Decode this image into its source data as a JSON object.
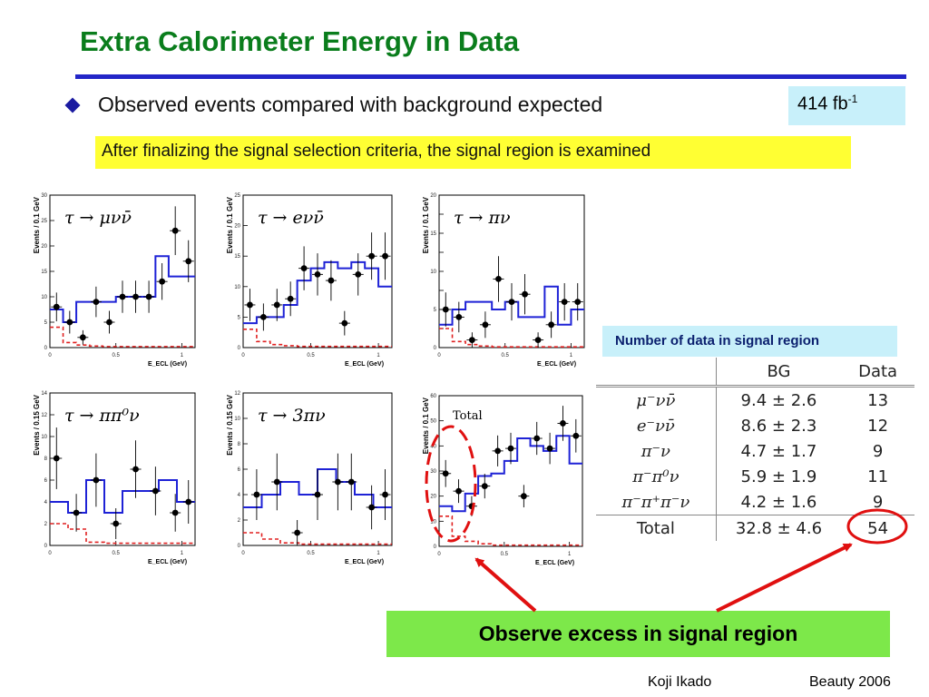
{
  "title": "Extra Calorimeter Energy in Data",
  "bullet": "Observed events compared with background expected",
  "luminosity": {
    "value": "414 fb",
    "exponent": "-1"
  },
  "highlight": "After finalizing the signal selection criteria, the signal region is examined",
  "table": {
    "caption": "Number of data in signal region",
    "headers": [
      "",
      "BG",
      "Data"
    ],
    "rows": [
      [
        "μ⁻νν̄",
        "9.4 ± 2.6",
        "13"
      ],
      [
        "e⁻νν̄",
        "8.6 ± 2.3",
        "12"
      ],
      [
        "π⁻ν",
        "4.7 ± 1.7",
        "9"
      ],
      [
        "π⁻π⁰ν",
        "5.9 ± 1.9",
        "11"
      ],
      [
        "π⁻π⁺π⁻ν",
        "4.2 ± 1.6",
        "9"
      ]
    ],
    "total": [
      "Total",
      "32.8 ± 4.6",
      "54"
    ]
  },
  "callout": "Observe excess in signal region",
  "footer": {
    "author": "Koji Ikado",
    "conference": "Beauty 2006"
  },
  "colors": {
    "title": "#0a7d1c",
    "rule": "#2326c8",
    "background_mc": "#1e22d6",
    "signal_mc": "#e02020",
    "annotation": "#e01010",
    "highlight": "#ffff33",
    "callout": "#7de84a",
    "box": "#c8f0fa"
  },
  "chart_data": [
    {
      "type": "scatter",
      "title": "τ → μνν̄",
      "xlabel": "E_ECL (GeV)",
      "ylabel": "Events / 0.1 GeV",
      "xlim": [
        0,
        1.1
      ],
      "ylim": [
        0,
        30
      ],
      "yticks": [
        0,
        5,
        10,
        15,
        20,
        25,
        30
      ],
      "xticks": [
        0,
        0.5,
        1
      ],
      "xtick_labels": [
        "0",
        "0.5",
        "1"
      ],
      "data": {
        "x": [
          0.05,
          0.15,
          0.25,
          0.35,
          0.45,
          0.55,
          0.65,
          0.75,
          0.85,
          0.95,
          1.05
        ],
        "y": [
          8,
          5,
          2,
          9,
          5,
          10,
          10,
          10,
          13,
          23,
          17
        ]
      },
      "background": [
        7.5,
        5,
        9,
        9,
        9,
        10,
        10,
        10,
        18,
        14,
        14
      ],
      "signal": [
        4,
        1,
        0.5,
        0.3,
        0.2,
        0.2,
        0.2,
        0.2,
        0.2,
        0.2,
        0.2
      ]
    },
    {
      "type": "scatter",
      "title": "τ → eνν̄",
      "xlabel": "E_ECL (GeV)",
      "ylabel": "Events / 0.1 GeV",
      "xlim": [
        0,
        1.1
      ],
      "ylim": [
        0,
        25
      ],
      "yticks": [
        0,
        5,
        10,
        15,
        20,
        25
      ],
      "xticks": [
        0,
        0.5,
        1
      ],
      "xtick_labels": [
        "0",
        "0.5",
        "1"
      ],
      "data": {
        "x": [
          0.05,
          0.15,
          0.25,
          0.35,
          0.45,
          0.55,
          0.65,
          0.75,
          0.85,
          0.95,
          1.05
        ],
        "y": [
          7,
          5,
          7,
          8,
          13,
          12,
          11,
          4,
          12,
          15,
          15
        ]
      },
      "background": [
        4,
        5,
        5,
        7,
        11,
        13,
        14,
        13,
        14,
        13,
        10
      ],
      "signal": [
        3,
        1,
        0.5,
        0.3,
        0.2,
        0.2,
        0.2,
        0.2,
        0.2,
        0.2,
        0.2
      ]
    },
    {
      "type": "scatter",
      "title": "τ → πν",
      "xlabel": "E_ECL (GeV)",
      "ylabel": "Events / 0.1 GeV",
      "xlim": [
        0,
        1.1
      ],
      "ylim": [
        0,
        20
      ],
      "yticks": [
        0,
        2.5,
        5,
        7.5,
        10,
        12.5,
        15,
        17.5,
        20
      ],
      "xticks": [
        0,
        0.5,
        1
      ],
      "xtick_labels": [
        "0",
        "0.5",
        "1"
      ],
      "data": {
        "x": [
          0.05,
          0.15,
          0.25,
          0.35,
          0.45,
          0.55,
          0.65,
          0.75,
          0.85,
          0.95,
          1.05
        ],
        "y": [
          5,
          4,
          1,
          3,
          9,
          6,
          7,
          1,
          3,
          6,
          6
        ]
      },
      "background": [
        3,
        5,
        6,
        6,
        5,
        6,
        4,
        4,
        8,
        3,
        5
      ],
      "signal": [
        2.5,
        0.8,
        0.4,
        0.2,
        0.1,
        0.1,
        0.1,
        0.1,
        0.1,
        0.1,
        0.1
      ]
    },
    {
      "type": "scatter",
      "title": "τ → ππ⁰ν",
      "xlabel": "E_ECL (GeV)",
      "ylabel": "Events / 0.15 GeV",
      "xlim": [
        0,
        1.1
      ],
      "ylim": [
        0,
        14
      ],
      "yticks": [
        0,
        2,
        4,
        6,
        8,
        10,
        12,
        14
      ],
      "xticks": [
        0,
        0.5,
        1
      ],
      "xtick_labels": [
        "0",
        "0.5",
        "1"
      ],
      "data": {
        "x": [
          0.05,
          0.2,
          0.35,
          0.5,
          0.65,
          0.8,
          0.95,
          1.05
        ],
        "y": [
          8,
          3,
          6,
          2,
          7,
          5,
          3,
          4
        ]
      },
      "background": [
        4,
        3,
        6,
        3,
        5,
        5,
        6,
        4
      ],
      "signal": [
        2,
        1.5,
        0.3,
        0.2,
        0.2,
        0.2,
        0.2,
        0.2
      ]
    },
    {
      "type": "scatter",
      "title": "τ → 3πν",
      "xlabel": "E_ECL (GeV)",
      "ylabel": "Events / 0.15 GeV",
      "xlim": [
        0,
        1.1
      ],
      "ylim": [
        0,
        12
      ],
      "yticks": [
        0,
        2,
        4,
        6,
        8,
        10,
        12
      ],
      "xticks": [
        0,
        0.5,
        1
      ],
      "xtick_labels": [
        "0",
        "0.5",
        "1"
      ],
      "data": {
        "x": [
          0.1,
          0.25,
          0.4,
          0.55,
          0.7,
          0.8,
          0.95,
          1.05
        ],
        "y": [
          4,
          5,
          1,
          4,
          5,
          5,
          3,
          4
        ]
      },
      "background": [
        3,
        4,
        5,
        4,
        6,
        5,
        4,
        3
      ],
      "signal": [
        1,
        0.5,
        0.2,
        0.1,
        0.1,
        0.1,
        0.1,
        0.1
      ]
    },
    {
      "type": "scatter",
      "title": "Total",
      "xlabel": "E_ECL (GeV)",
      "ylabel": "Events / 0.1 GeV",
      "xlim": [
        0,
        1.1
      ],
      "ylim": [
        0,
        60
      ],
      "yticks": [
        0,
        10,
        20,
        30,
        40,
        50,
        60
      ],
      "xticks": [
        0,
        0.5,
        1
      ],
      "xtick_labels": [
        "0",
        "0.5",
        "1"
      ],
      "data": {
        "x": [
          0.05,
          0.15,
          0.25,
          0.35,
          0.45,
          0.55,
          0.65,
          0.75,
          0.85,
          0.95,
          1.05
        ],
        "y": [
          29,
          22,
          16,
          24,
          38,
          39,
          20,
          43,
          39,
          49,
          44
        ]
      },
      "background": [
        16,
        14,
        21,
        28,
        29,
        34,
        43,
        40,
        38,
        44,
        33
      ],
      "signal": [
        12,
        4,
        2,
        1,
        0.5,
        0.5,
        0.5,
        0.5,
        0.5,
        0.5,
        0.5
      ]
    }
  ]
}
